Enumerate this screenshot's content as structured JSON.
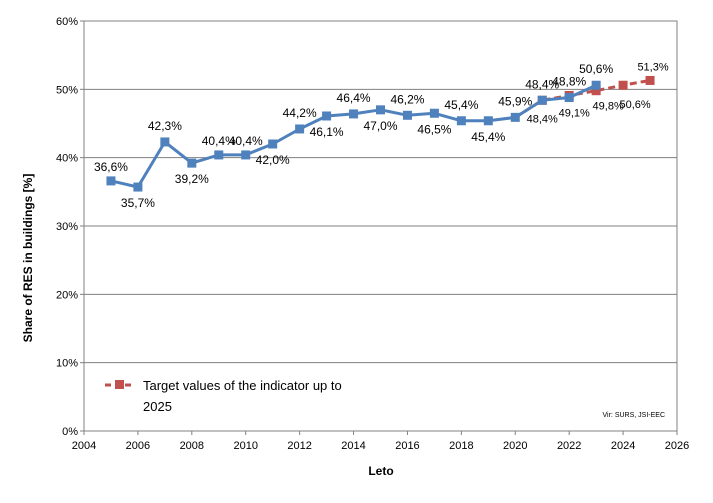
{
  "chart_data": {
    "type": "line",
    "xlabel": "Leto",
    "ylabel": "Share of RES in buildings [%]",
    "xlim": [
      2004,
      2026
    ],
    "ylim": [
      0,
      60
    ],
    "xticks": [
      "2004",
      "2006",
      "2008",
      "2010",
      "2012",
      "2014",
      "2016",
      "2018",
      "2020",
      "2022",
      "2024",
      "2026"
    ],
    "yticks": [
      "0%",
      "10%",
      "20%",
      "30%",
      "40%",
      "50%",
      "60%"
    ],
    "grid": "horizontal",
    "series": [
      {
        "name": "",
        "color": "#4F81BD",
        "style": "solid",
        "marker": "square",
        "x": [
          2005,
          2006,
          2007,
          2008,
          2009,
          2010,
          2011,
          2012,
          2013,
          2014,
          2015,
          2016,
          2017,
          2018,
          2019,
          2020,
          2021,
          2022,
          2023
        ],
        "y": [
          36.6,
          35.7,
          42.3,
          39.2,
          40.4,
          40.4,
          42.0,
          44.2,
          46.1,
          46.4,
          47.0,
          46.2,
          46.5,
          45.4,
          45.4,
          45.9,
          48.4,
          48.8,
          50.6
        ],
        "labels": [
          "36,6%",
          "35,7%",
          "42,3%",
          "39,2%",
          "40,4%",
          "40,4%",
          "42,0%",
          "44,2%",
          "46,1%",
          "46,4%",
          "47,0%",
          "46,2%",
          "46,5%",
          "45,4%",
          "45,4%",
          "45,9%",
          "48,4%",
          "48,8%",
          "50,6%"
        ]
      },
      {
        "name": "Target values of the indicator up to 2025",
        "color": "#C0504D",
        "style": "dashed",
        "marker": "square",
        "x": [
          2020,
          2021,
          2022,
          2023,
          2024,
          2025
        ],
        "y": [
          45.9,
          48.4,
          49.1,
          49.8,
          50.6,
          51.3
        ],
        "labels": [
          "",
          "48,4%",
          "49,1%",
          "49,8%",
          "50,6%",
          "51,3%"
        ]
      }
    ],
    "legend": {
      "placement": "bottom-left",
      "line1": "Target values of the indicator up to",
      "line2": "2025"
    },
    "source": "Vir: SURS, JSI-EEC"
  }
}
